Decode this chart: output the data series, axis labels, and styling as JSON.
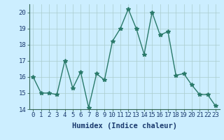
{
  "x": [
    0,
    1,
    2,
    3,
    4,
    5,
    6,
    7,
    8,
    9,
    10,
    11,
    12,
    13,
    14,
    15,
    16,
    17,
    18,
    19,
    20,
    21,
    22,
    23
  ],
  "y": [
    16.0,
    15.0,
    15.0,
    14.9,
    17.0,
    15.3,
    16.3,
    14.1,
    16.2,
    15.8,
    18.2,
    19.0,
    20.2,
    19.0,
    17.4,
    20.0,
    18.6,
    18.8,
    16.1,
    16.2,
    15.5,
    14.9,
    14.9,
    14.2
  ],
  "line_color": "#2a7a6a",
  "marker": "*",
  "marker_size": 4,
  "bg_color": "#cceeff",
  "grid_color": "#aacccc",
  "xlabel": "Humidex (Indice chaleur)",
  "ylim": [
    14,
    20.5
  ],
  "xlim": [
    -0.5,
    23.5
  ],
  "yticks": [
    14,
    15,
    16,
    17,
    18,
    19,
    20
  ],
  "xticks": [
    0,
    1,
    2,
    3,
    4,
    5,
    6,
    7,
    8,
    9,
    10,
    11,
    12,
    13,
    14,
    15,
    16,
    17,
    18,
    19,
    20,
    21,
    22,
    23
  ],
  "xtick_labels": [
    "0",
    "1",
    "2",
    "3",
    "4",
    "5",
    "6",
    "7",
    "8",
    "9",
    "10",
    "11",
    "12",
    "13",
    "14",
    "15",
    "16",
    "17",
    "18",
    "19",
    "20",
    "21",
    "22",
    "23"
  ],
  "xlabel_fontsize": 7.5,
  "tick_fontsize": 6.5,
  "line_width": 1.0,
  "label_color": "#1a3a6e",
  "spine_color": "#336655"
}
